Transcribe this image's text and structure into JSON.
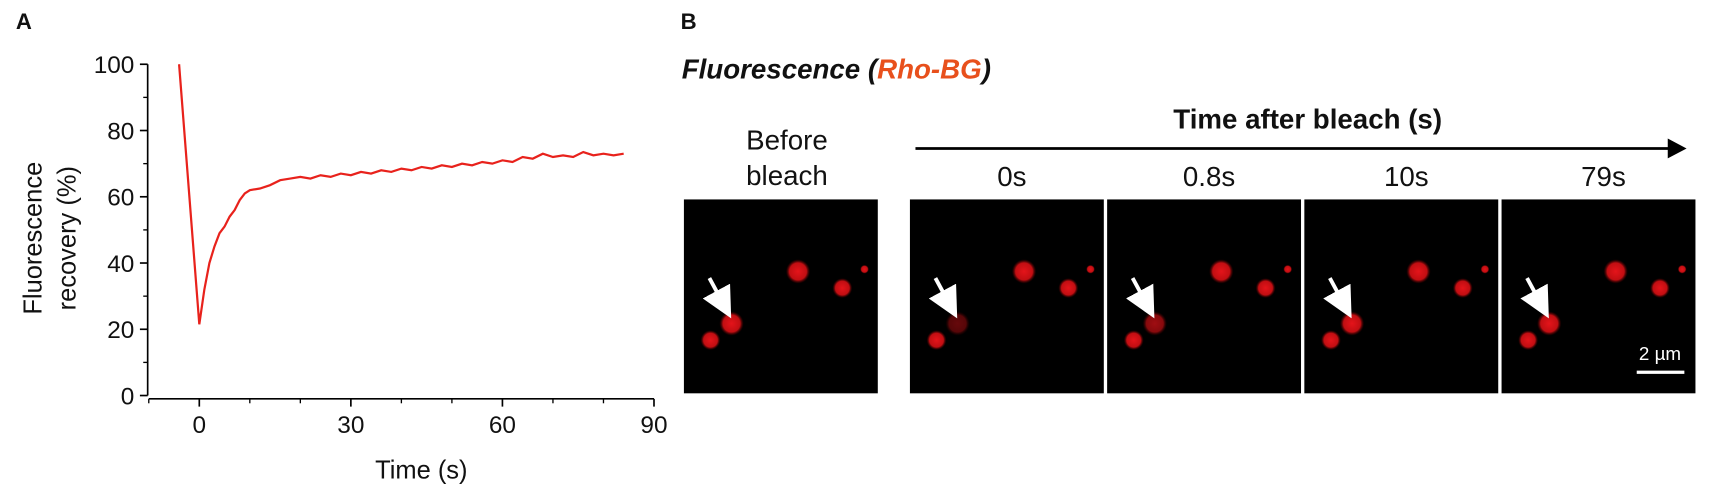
{
  "chart_data": {
    "type": "line",
    "panel_label": "A",
    "x_label": "Time (s)",
    "y_label": [
      "Fluorescence",
      "recovery (%)"
    ],
    "x": [
      -4,
      0,
      1,
      2,
      3,
      4,
      5,
      6,
      7,
      8,
      9,
      10,
      12,
      14,
      16,
      18,
      20,
      22,
      24,
      26,
      28,
      30,
      32,
      34,
      36,
      38,
      40,
      42,
      44,
      46,
      48,
      50,
      52,
      54,
      56,
      58,
      60,
      62,
      64,
      66,
      68,
      70,
      72,
      74,
      76,
      78,
      80,
      82,
      84
    ],
    "values": [
      100,
      21.5,
      32,
      40,
      45,
      49,
      51,
      54,
      56,
      59,
      61,
      62,
      62.5,
      63.5,
      65,
      65.5,
      66,
      65.5,
      66.5,
      66,
      67,
      66.5,
      67.5,
      67,
      68,
      67.5,
      68.5,
      68,
      69,
      68.5,
      69.5,
      69,
      70,
      69.5,
      70.5,
      70,
      71,
      70.5,
      72,
      71.5,
      73,
      72,
      72.5,
      72,
      73.5,
      72.5,
      73,
      72.5,
      73
    ],
    "color": "#e8221c",
    "xlim": [
      -10,
      90
    ],
    "xticks": [
      0,
      30,
      60,
      90
    ],
    "xminorticks": [
      -10,
      10,
      20,
      40,
      50,
      70,
      80
    ],
    "ylim": [
      0,
      100
    ],
    "yticks": [
      0,
      20,
      40,
      60,
      80,
      100
    ],
    "yminorticks": [
      10,
      30,
      50,
      70,
      90
    ]
  },
  "panel_b": {
    "panel_label": "B",
    "title_start": "Fluorescence (",
    "title_probe": "Rho-BG",
    "title_end": ")",
    "before_label": [
      "Before",
      "bleach"
    ],
    "time_arrow_label": "Time after bleach (s)",
    "time_labels": [
      "0s",
      "0.8s",
      "10s",
      "79s"
    ],
    "scale_bar": "2 µm"
  }
}
